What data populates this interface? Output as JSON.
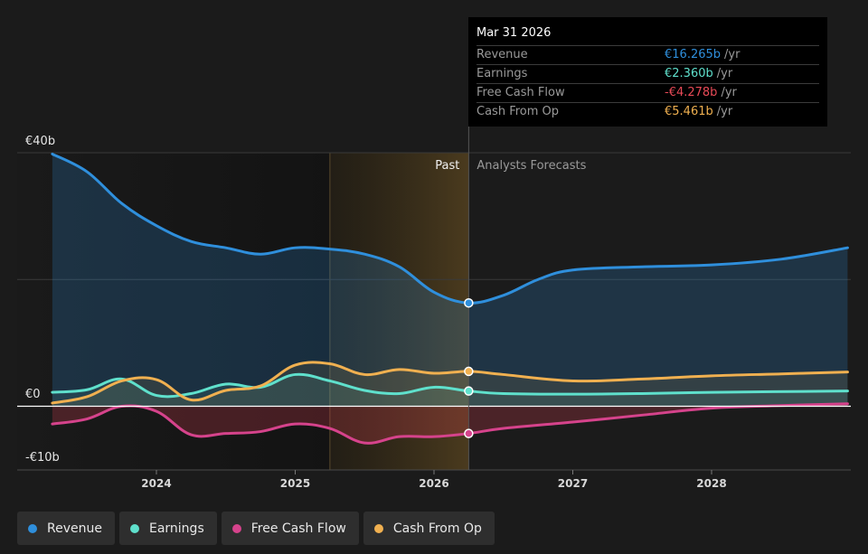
{
  "tooltip": {
    "date": "Mar 31 2026",
    "rows": [
      {
        "label": "Revenue",
        "value": "€16.265b",
        "unit": "/yr",
        "color": "#2f8fdc"
      },
      {
        "label": "Earnings",
        "value": "€2.360b",
        "unit": "/yr",
        "color": "#5fe0cc"
      },
      {
        "label": "Free Cash Flow",
        "value": "-€4.278b",
        "unit": "/yr",
        "color": "#e84a57"
      },
      {
        "label": "Cash From Op",
        "value": "€5.461b",
        "unit": "/yr",
        "color": "#f0b050"
      }
    ]
  },
  "labels": {
    "past": "Past",
    "forecast": "Analysts Forecasts"
  },
  "legend": [
    {
      "label": "Revenue",
      "color": "#2f8fdc"
    },
    {
      "label": "Earnings",
      "color": "#5fe0cc"
    },
    {
      "label": "Free Cash Flow",
      "color": "#d6438c"
    },
    {
      "label": "Cash From Op",
      "color": "#f0b050"
    }
  ],
  "chart_data": {
    "type": "area",
    "x_ticks": [
      "2024",
      "2025",
      "2026",
      "2027",
      "2028"
    ],
    "y_ticks": [
      {
        "value": 40,
        "label": "€40b"
      },
      {
        "value": 0,
        "label": "€0"
      },
      {
        "value": -10,
        "label": "-€10b"
      }
    ],
    "ylim": [
      -10,
      40
    ],
    "xlim": [
      2023.25,
      2028.98
    ],
    "past_cutoff": 2026.25,
    "shaded_region": [
      2025.25,
      2026.25
    ],
    "series": [
      {
        "name": "Revenue",
        "color": "#2f8fdc",
        "x": [
          2023.25,
          2023.5,
          2023.75,
          2024,
          2024.25,
          2024.5,
          2024.75,
          2025,
          2025.25,
          2025.5,
          2025.75,
          2026,
          2026.25,
          2026.5,
          2026.75,
          2027,
          2027.5,
          2028,
          2028.5,
          2028.98
        ],
        "y": [
          39.8,
          37,
          32,
          28.5,
          26,
          25,
          24,
          25,
          24.8,
          24,
          22,
          18,
          16.3,
          17.5,
          20,
          21.5,
          22,
          22.3,
          23.2,
          25
        ]
      },
      {
        "name": "Earnings",
        "color": "#5fe0cc",
        "x": [
          2023.25,
          2023.5,
          2023.75,
          2024,
          2024.25,
          2024.5,
          2024.75,
          2025,
          2025.25,
          2025.5,
          2025.75,
          2026,
          2026.25,
          2026.5,
          2027,
          2027.5,
          2028,
          2028.98
        ],
        "y": [
          2.2,
          2.6,
          4.3,
          1.7,
          2,
          3.5,
          3,
          5,
          4,
          2.5,
          2,
          3,
          2.4,
          2,
          1.9,
          2,
          2.2,
          2.4
        ]
      },
      {
        "name": "Free Cash Flow",
        "color": "#d6438c",
        "x": [
          2023.25,
          2023.5,
          2023.75,
          2024,
          2024.25,
          2024.5,
          2024.75,
          2025,
          2025.25,
          2025.5,
          2025.75,
          2026,
          2026.25,
          2026.5,
          2027,
          2027.5,
          2028,
          2028.5,
          2028.98
        ],
        "y": [
          -2.8,
          -2,
          0,
          -0.8,
          -4.5,
          -4.3,
          -4,
          -2.8,
          -3.5,
          -5.8,
          -4.8,
          -4.8,
          -4.3,
          -3.5,
          -2.5,
          -1.4,
          -0.3,
          0.1,
          0.4
        ]
      },
      {
        "name": "Cash From Op",
        "color": "#f0b050",
        "x": [
          2023.25,
          2023.5,
          2023.75,
          2024,
          2024.25,
          2024.5,
          2024.75,
          2025,
          2025.25,
          2025.5,
          2025.75,
          2026,
          2026.25,
          2026.5,
          2027,
          2027.5,
          2028,
          2028.5,
          2028.98
        ],
        "y": [
          0.5,
          1.5,
          4,
          4.2,
          1,
          2.5,
          3.2,
          6.5,
          6.7,
          5,
          5.8,
          5.2,
          5.5,
          5,
          4,
          4.3,
          4.8,
          5.1,
          5.4
        ]
      }
    ]
  }
}
